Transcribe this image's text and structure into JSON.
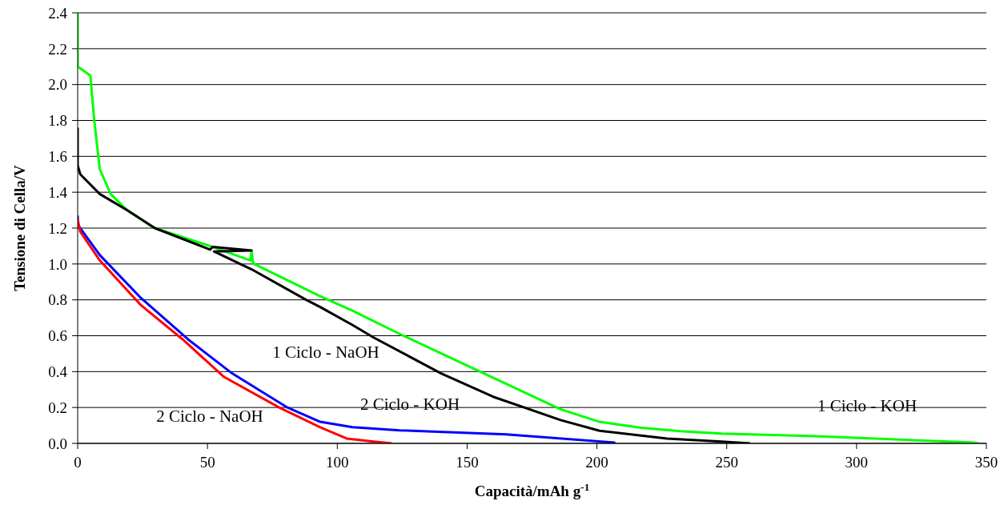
{
  "chart_data": {
    "type": "line",
    "xlabel": "Capacità/mAh g$^{-1}$",
    "ylabel": "Tensione di Cella/V",
    "xlim": [
      0,
      350
    ],
    "xticks": [
      0,
      50,
      100,
      150,
      200,
      250,
      300,
      350
    ],
    "ylim": [
      0,
      2.4
    ],
    "yticks": [
      {
        "value": 0,
        "label": "0.0"
      },
      {
        "value": 0.2,
        "label": "0.2"
      },
      {
        "value": 0.4,
        "label": "0.4"
      },
      {
        "value": 0.6,
        "label": "0.6"
      },
      {
        "value": 0.8,
        "label": "0.8"
      },
      {
        "value": 1,
        "label": "1.0"
      },
      {
        "value": 1.2,
        "label": "1.2"
      },
      {
        "value": 1.4,
        "label": "1.4"
      },
      {
        "value": 1.6,
        "label": "1.6"
      },
      {
        "value": 1.8,
        "label": "1.8"
      },
      {
        "value": 2,
        "label": "2.0"
      },
      {
        "value": 2.2,
        "label": "2.2"
      },
      {
        "value": 2.4,
        "label": "2.4"
      }
    ],
    "grid": "y",
    "legend": false,
    "marker": "none",
    "line_style": "solid",
    "series": [
      {
        "name": "1 Ciclo - KOH",
        "color": "#00ff00",
        "x": [
          0,
          0,
          2,
          4.9,
          6.4,
          8.5,
          12.7,
          19,
          29.7,
          51,
          66.5,
          67,
          67.5,
          68,
          93.4,
          105.8,
          124,
          155,
          186,
          201,
          217,
          232,
          248,
          284,
          345,
          347
        ],
        "values": [
          2.4,
          2.1,
          2.08,
          2.05,
          1.8,
          1.53,
          1.39,
          1.3,
          1.2,
          1.1,
          1.02,
          1.07,
          1.01,
          1.0,
          0.82,
          0.74,
          0.61,
          0.4,
          0.19,
          0.12,
          0.087,
          0.068,
          0.055,
          0.04,
          0.005,
          0
        ]
      },
      {
        "name": "1 Ciclo - NaOH",
        "color": "#000000",
        "x": [
          0,
          0,
          1,
          8.5,
          19,
          29.7,
          51,
          52,
          67,
          52.5,
          67,
          88,
          93.4,
          105.8,
          114,
          140,
          160,
          186,
          201,
          227,
          248,
          259
        ],
        "values": [
          1.76,
          1.55,
          1.5,
          1.39,
          1.3,
          1.2,
          1.08,
          1.095,
          1.075,
          1.07,
          0.97,
          0.8,
          0.76,
          0.66,
          0.59,
          0.39,
          0.26,
          0.13,
          0.07,
          0.027,
          0.01,
          0
        ]
      },
      {
        "name": "2 Ciclo - KOH",
        "color": "#0000ff",
        "x": [
          0,
          0,
          8.5,
          24.4,
          42.5,
          59.5,
          80.8,
          93.4,
          105.8,
          124,
          165,
          206.6,
          207
        ],
        "values": [
          1.27,
          1.22,
          1.05,
          0.81,
          0.58,
          0.39,
          0.2,
          0.12,
          0.09,
          0.073,
          0.05,
          0.005,
          0
        ]
      },
      {
        "name": "2 Ciclo - NaOH",
        "color": "#ff0000",
        "x": [
          0,
          1,
          8.5,
          24.4,
          40.4,
          56.4,
          77.6,
          93.4,
          103.6,
          114,
          121
        ],
        "values": [
          1.25,
          1.18,
          1.02,
          0.77,
          0.58,
          0.37,
          0.2,
          0.09,
          0.027,
          0.01,
          0
        ]
      }
    ]
  }
}
